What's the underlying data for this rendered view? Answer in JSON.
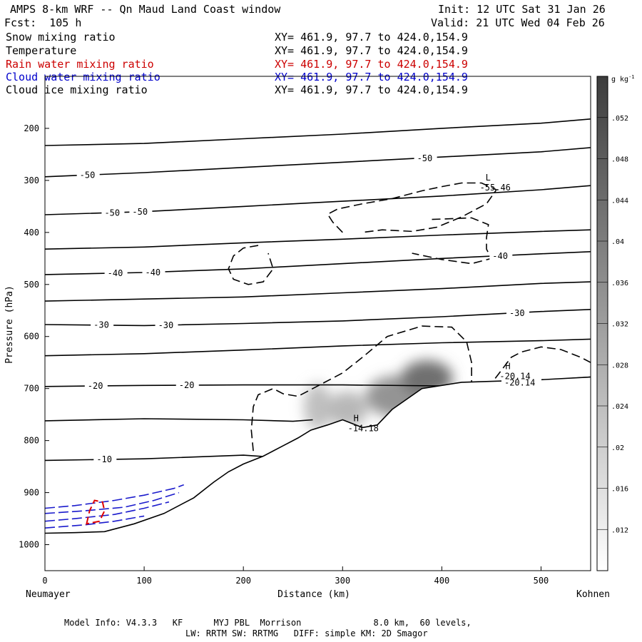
{
  "header": {
    "title": "AMPS 8-km WRF -- Qn Maud Land Coast window",
    "init": "Init: 12 UTC Sat 31 Jan 26",
    "fcst": "Fcst:  105 h",
    "valid": "Valid: 21 UTC Wed 04 Feb 26"
  },
  "fields": [
    {
      "name": "Snow mixing ratio",
      "xy": "XY= 461.9, 97.7 to 424.0,154.9",
      "color": "#000000"
    },
    {
      "name": "Temperature",
      "xy": "XY= 461.9, 97.7 to 424.0,154.9",
      "color": "#000000"
    },
    {
      "name": "Rain water mixing ratio",
      "xy": "XY= 461.9, 97.7 to 424.0,154.9",
      "color": "#cc0000"
    },
    {
      "name": "Cloud water mixing ratio",
      "xy": "XY= 461.9, 97.7 to 424.0,154.9",
      "color": "#0000cc"
    },
    {
      "name": "Cloud ice mixing ratio",
      "xy": "XY= 461.9, 97.7 to 424.0,154.9",
      "color": "#000000"
    }
  ],
  "footer": {
    "line1": "Model Info: V4.3.3   KF      MYJ PBL  Morrison              8.0 km,  60 levels,",
    "line2": "LW: RRTM SW: RRTMG   DIFF: simple KM: 2D Smagor"
  },
  "chart_data": {
    "type": "contour",
    "xlabel": "Distance (km)",
    "ylabel": "Pressure (hPa)",
    "xlim": [
      0,
      550
    ],
    "ylim": [
      1050,
      100
    ],
    "x_ticks": [
      0,
      100,
      200,
      300,
      400,
      500
    ],
    "y_ticks": [
      200,
      300,
      400,
      500,
      600,
      700,
      800,
      900,
      1000
    ],
    "x_end_labels": {
      "left": "Neumayer",
      "right": "Kohnen"
    },
    "colorbar": {
      "unit": "g kg",
      "unit_exp": "-1",
      "ticks": [
        ".012",
        ".016",
        ".02",
        ".024",
        ".028",
        ".032",
        ".036",
        ".04",
        ".044",
        ".048",
        ".052"
      ]
    },
    "isotherms": [
      {
        "points": [
          [
            0,
            233
          ],
          [
            100,
            229
          ],
          [
            200,
            220
          ],
          [
            300,
            211
          ],
          [
            400,
            200
          ],
          [
            500,
            190
          ],
          [
            550,
            182
          ]
        ]
      },
      {
        "points": [
          [
            0,
            293
          ],
          [
            100,
            285
          ],
          [
            200,
            275
          ],
          [
            300,
            265
          ],
          [
            400,
            255
          ],
          [
            500,
            245
          ],
          [
            550,
            237
          ]
        ],
        "labels": [
          {
            "x": 35,
            "text": "-50"
          },
          {
            "x": 375,
            "text": "-50"
          }
        ]
      },
      {
        "points": [
          [
            0,
            366
          ],
          [
            100,
            360
          ],
          [
            200,
            350
          ],
          [
            300,
            340
          ],
          [
            400,
            330
          ],
          [
            500,
            318
          ],
          [
            550,
            310
          ]
        ],
        "labels": [
          {
            "x": 60,
            "text": "-50"
          },
          {
            "x": 88,
            "text": "-50"
          }
        ]
      },
      {
        "points": [
          [
            0,
            432
          ],
          [
            100,
            428
          ],
          [
            200,
            420
          ],
          [
            300,
            413
          ],
          [
            400,
            405
          ],
          [
            500,
            398
          ],
          [
            550,
            395
          ]
        ]
      },
      {
        "points": [
          [
            0,
            481
          ],
          [
            100,
            477
          ],
          [
            200,
            470
          ],
          [
            300,
            460
          ],
          [
            400,
            450
          ],
          [
            500,
            441
          ],
          [
            550,
            437
          ]
        ],
        "labels": [
          {
            "x": 63,
            "text": "-40"
          },
          {
            "x": 101,
            "text": "-40"
          },
          {
            "x": 451,
            "text": "-40"
          }
        ]
      },
      {
        "points": [
          [
            0,
            532
          ],
          [
            100,
            528
          ],
          [
            200,
            524
          ],
          [
            300,
            516
          ],
          [
            400,
            508
          ],
          [
            500,
            498
          ],
          [
            550,
            495
          ]
        ]
      },
      {
        "points": [
          [
            0,
            577
          ],
          [
            100,
            579
          ],
          [
            200,
            575
          ],
          [
            300,
            570
          ],
          [
            400,
            562
          ],
          [
            500,
            552
          ],
          [
            550,
            548
          ]
        ],
        "labels": [
          {
            "x": 49,
            "text": "-30"
          },
          {
            "x": 114,
            "text": "-30"
          },
          {
            "x": 468,
            "text": "-30"
          }
        ]
      },
      {
        "points": [
          [
            0,
            637
          ],
          [
            100,
            633
          ],
          [
            200,
            626
          ],
          [
            300,
            618
          ],
          [
            400,
            612
          ],
          [
            500,
            608
          ],
          [
            550,
            605
          ]
        ]
      },
      {
        "points": [
          [
            0,
            696
          ],
          [
            100,
            694
          ],
          [
            200,
            693
          ],
          [
            300,
            693
          ],
          [
            400,
            695
          ],
          [
            450,
            690
          ],
          [
            500,
            684
          ],
          [
            550,
            678
          ]
        ],
        "labels": [
          {
            "x": 43,
            "text": "-20"
          },
          {
            "x": 135,
            "text": "-20"
          },
          {
            "x": 463,
            "text": "-20.14"
          }
        ]
      },
      {
        "points": [
          [
            0,
            762
          ],
          [
            100,
            758
          ],
          [
            200,
            760
          ],
          [
            250,
            763
          ],
          [
            270,
            760
          ]
        ]
      },
      {
        "points": [
          [
            0,
            838
          ],
          [
            100,
            835
          ],
          [
            200,
            828
          ],
          [
            255,
            835
          ]
        ],
        "labels": [
          {
            "x": 52,
            "text": "-10"
          }
        ]
      }
    ],
    "extrema": [
      {
        "symbol": "L",
        "x": 444,
        "y": 300,
        "value": "-55.46"
      },
      {
        "symbol": "H",
        "x": 464,
        "y": 663,
        "value": "-20.14"
      },
      {
        "symbol": "H",
        "x": 311,
        "y": 763,
        "value": "-14.18"
      }
    ],
    "terrain": [
      [
        0,
        978
      ],
      [
        30,
        977
      ],
      [
        60,
        975
      ],
      [
        90,
        960
      ],
      [
        120,
        940
      ],
      [
        150,
        910
      ],
      [
        170,
        880
      ],
      [
        185,
        860
      ],
      [
        200,
        845
      ],
      [
        220,
        830
      ],
      [
        240,
        810
      ],
      [
        255,
        795
      ],
      [
        268,
        780
      ],
      [
        285,
        770
      ],
      [
        300,
        760
      ],
      [
        320,
        775
      ],
      [
        335,
        770
      ],
      [
        350,
        740
      ],
      [
        380,
        700
      ],
      [
        420,
        688
      ],
      [
        500,
        683
      ],
      [
        550,
        678
      ]
    ],
    "cloud_ice_contours": [
      {
        "points": [
          [
            300,
            400
          ],
          [
            290,
            380
          ],
          [
            285,
            365
          ],
          [
            295,
            355
          ],
          [
            320,
            345
          ],
          [
            350,
            335
          ],
          [
            380,
            320
          ],
          [
            400,
            312
          ],
          [
            420,
            305
          ],
          [
            440,
            305
          ],
          [
            455,
            318
          ],
          [
            445,
            345
          ],
          [
            420,
            370
          ],
          [
            395,
            390
          ],
          [
            370,
            398
          ],
          [
            340,
            395
          ],
          [
            320,
            400
          ]
        ]
      },
      {
        "points": [
          [
            215,
            425
          ],
          [
            200,
            430
          ],
          [
            190,
            445
          ],
          [
            185,
            470
          ],
          [
            190,
            490
          ],
          [
            205,
            500
          ],
          [
            220,
            495
          ],
          [
            230,
            470
          ],
          [
            225,
            440
          ]
        ]
      },
      {
        "points": [
          [
            210,
            820
          ],
          [
            208,
            780
          ],
          [
            210,
            735
          ],
          [
            215,
            712
          ],
          [
            230,
            700
          ],
          [
            240,
            710
          ],
          [
            255,
            715
          ],
          [
            270,
            700
          ],
          [
            300,
            670
          ],
          [
            320,
            640
          ],
          [
            345,
            600
          ],
          [
            380,
            580
          ],
          [
            410,
            582
          ],
          [
            425,
            610
          ],
          [
            430,
            650
          ],
          [
            430,
            705
          ],
          [
            450,
            690
          ],
          [
            460,
            665
          ],
          [
            470,
            640
          ],
          [
            480,
            630
          ],
          [
            500,
            620
          ],
          [
            520,
            625
          ],
          [
            540,
            640
          ],
          [
            550,
            650
          ]
        ]
      },
      {
        "points": [
          [
            390,
            375
          ],
          [
            430,
            372
          ],
          [
            447,
            385
          ],
          [
            445,
            410
          ],
          [
            445,
            432
          ],
          [
            450,
            450
          ],
          [
            430,
            460
          ],
          [
            400,
            452
          ],
          [
            370,
            440
          ]
        ]
      }
    ],
    "cloud_water_contours": [
      {
        "points": [
          [
            0,
            930
          ],
          [
            30,
            925
          ],
          [
            70,
            915
          ],
          [
            100,
            905
          ],
          [
            130,
            892
          ],
          [
            140,
            885
          ]
        ]
      },
      {
        "points": [
          [
            0,
            940
          ],
          [
            40,
            935
          ],
          [
            80,
            928
          ],
          [
            110,
            915
          ],
          [
            135,
            900
          ]
        ]
      },
      {
        "points": [
          [
            0,
            955
          ],
          [
            30,
            950
          ],
          [
            70,
            942
          ],
          [
            100,
            930
          ],
          [
            125,
            918
          ]
        ]
      },
      {
        "points": [
          [
            0,
            968
          ],
          [
            40,
            962
          ],
          [
            70,
            955
          ],
          [
            100,
            945
          ]
        ]
      }
    ],
    "rain_water_contours": [
      {
        "points": [
          [
            42,
            960
          ],
          [
            45,
            935
          ],
          [
            50,
            915
          ],
          [
            58,
            918
          ],
          [
            60,
            935
          ],
          [
            55,
            955
          ]
        ]
      }
    ],
    "snow_blobs": [
      {
        "x": 275,
        "y": 735,
        "rx": 14,
        "ry": 45,
        "value": 0.018
      },
      {
        "x": 305,
        "y": 740,
        "rx": 20,
        "ry": 35,
        "value": 0.02
      },
      {
        "x": 355,
        "y": 715,
        "rx": 32,
        "ry": 40,
        "value": 0.03
      },
      {
        "x": 385,
        "y": 680,
        "rx": 26,
        "ry": 34,
        "value": 0.04
      }
    ]
  }
}
